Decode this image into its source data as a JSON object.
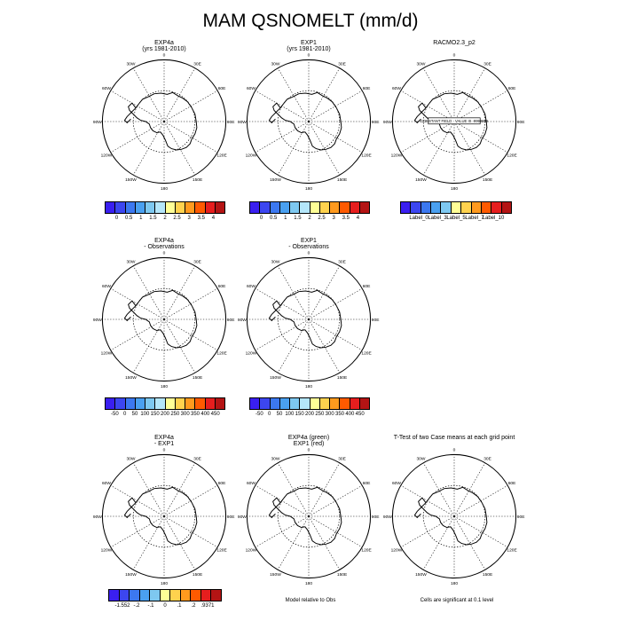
{
  "title": "MAM QSNOMELT (mm/d)",
  "colors": [
    "#3a1ff0",
    "#3c46f0",
    "#3c78f0",
    "#4aa0f0",
    "#7ec8f0",
    "#b4e6fa",
    "#ffff96",
    "#ffd24e",
    "#ff9a1e",
    "#ff5a00",
    "#e61e1e",
    "#b41414"
  ],
  "panels": [
    {
      "id": "r1c1",
      "title_line1": "EXP4a",
      "title_line2": "(yrs 1981-2010)",
      "col": 0,
      "row": 0
    },
    {
      "id": "r1c2",
      "title_line1": "EXP1",
      "title_line2": "(yrs 1981-2010)",
      "col": 1,
      "row": 0
    },
    {
      "id": "r1c3",
      "title_line1": "RACMO2.3_p2",
      "title_line2": "",
      "col": 2,
      "row": 0,
      "annotation": "CONSTANT FIELD - VALUE IS -9999999"
    },
    {
      "id": "r2c1",
      "title_line1": "EXP4a",
      "title_line2": "- Observations",
      "col": 0,
      "row": 1
    },
    {
      "id": "r2c2",
      "title_line1": "EXP1",
      "title_line2": "- Observations",
      "col": 1,
      "row": 1
    },
    {
      "id": "r3c1",
      "title_line1": "EXP4a",
      "title_line2": "- EXP1",
      "col": 0,
      "row": 2
    },
    {
      "id": "r3c2",
      "title_line1": "EXP4a (green)",
      "title_line2": "EXP1 (red)",
      "col": 1,
      "row": 2
    },
    {
      "id": "r3c3",
      "title_line1": "T-Test of two Case means at each grid point",
      "title_line2": "",
      "col": 2,
      "row": 2
    }
  ],
  "lon_labels": [
    "0",
    "30E",
    "60E",
    "90E",
    "120E",
    "150E",
    "180",
    "150W",
    "120W",
    "90W",
    "60W",
    "30W"
  ],
  "colorbars": [
    {
      "id": "cb1",
      "labels": [
        "0",
        "0.5",
        "1",
        "1.5",
        "2",
        "2.5",
        "3",
        "3.5",
        "4"
      ]
    },
    {
      "id": "cb2",
      "labels": [
        "0",
        "0.5",
        "1",
        "1.5",
        "2",
        "2.5",
        "3",
        "3.5",
        "4"
      ]
    },
    {
      "id": "cb3",
      "labels": [
        "Label_0",
        "Label_3",
        "Label_5",
        "Label_7",
        "Label_10"
      ]
    },
    {
      "id": "cb4",
      "labels": [
        "-50",
        "0",
        "50",
        "100",
        "150",
        "200",
        "250",
        "300",
        "350",
        "400",
        "450"
      ]
    },
    {
      "id": "cb5",
      "labels": [
        "-50",
        "0",
        "50",
        "100",
        "150",
        "200",
        "250",
        "300",
        "350",
        "400",
        "450"
      ]
    },
    {
      "id": "cb6",
      "labels": [
        "-1.552",
        "-.2",
        "-.1",
        "0",
        ".1",
        ".2",
        ".9371"
      ]
    }
  ],
  "footnotes": {
    "model_relative": "Model relative to Obs",
    "significance": "Cells are significant at 0.1 level"
  }
}
